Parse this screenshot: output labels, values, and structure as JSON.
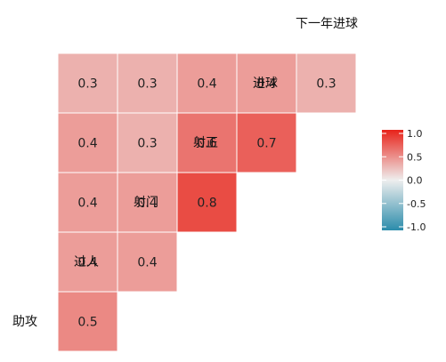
{
  "chart_data": {
    "type": "heatmap",
    "variables": [
      "助攻",
      "过人",
      "射门",
      "射正",
      "进球",
      "下一年进球"
    ],
    "values": [
      [
        null,
        null,
        null,
        null,
        null
      ],
      [
        0.5,
        null,
        null,
        null,
        null
      ],
      [
        0.4,
        0.4,
        null,
        null,
        null
      ],
      [
        0.4,
        0.4,
        0.8,
        null,
        null
      ],
      [
        0.4,
        0.3,
        0.6,
        0.7,
        null
      ],
      [
        0.3,
        0.3,
        0.4,
        0.4,
        0.3
      ]
    ],
    "labels": [
      [
        null,
        null,
        null,
        null,
        null
      ],
      [
        "0.5",
        null,
        null,
        null,
        null
      ],
      [
        "0.4",
        "0.4",
        null,
        null,
        null
      ],
      [
        "0.4",
        "0.4",
        "0.8",
        null,
        null
      ],
      [
        "0.4",
        "0.3",
        "0.6",
        "0.7",
        null
      ],
      [
        "0.3",
        "0.3",
        "0.4",
        "0.4",
        "0.3"
      ]
    ],
    "colorbar": {
      "ticks": [
        1.0,
        0.5,
        0.0,
        -0.5,
        -1.0
      ],
      "tick_labels": [
        "1.0",
        "0.5",
        "0.0",
        "-0.5",
        "-1.0"
      ],
      "range": [
        -1,
        1
      ],
      "low_color": "#2b8cab",
      "mid_color": "#eeeeee",
      "high_color": "#e8231a"
    }
  }
}
